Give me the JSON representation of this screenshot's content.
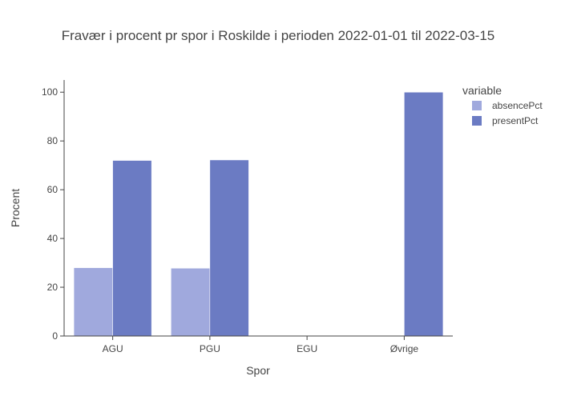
{
  "chart_data": {
    "type": "bar",
    "title": "Fravær i procent pr spor i Roskilde i perioden 2022-01-01 til 2022-03-15",
    "xlabel": "Spor",
    "ylabel": "Procent",
    "categories": [
      "AGU",
      "PGU",
      "EGU",
      "Øvrige"
    ],
    "series": [
      {
        "name": "absencePct",
        "color": "#a0a9dd",
        "values": [
          28,
          27.8,
          0,
          0
        ]
      },
      {
        "name": "presentPct",
        "color": "#6b7bc3",
        "values": [
          72,
          72.2,
          0,
          100
        ]
      }
    ],
    "ylim": [
      0,
      105
    ],
    "yticks": [
      0,
      20,
      40,
      60,
      80,
      100
    ],
    "legend": {
      "title": "variable",
      "position": "top-right"
    },
    "grid": false
  }
}
